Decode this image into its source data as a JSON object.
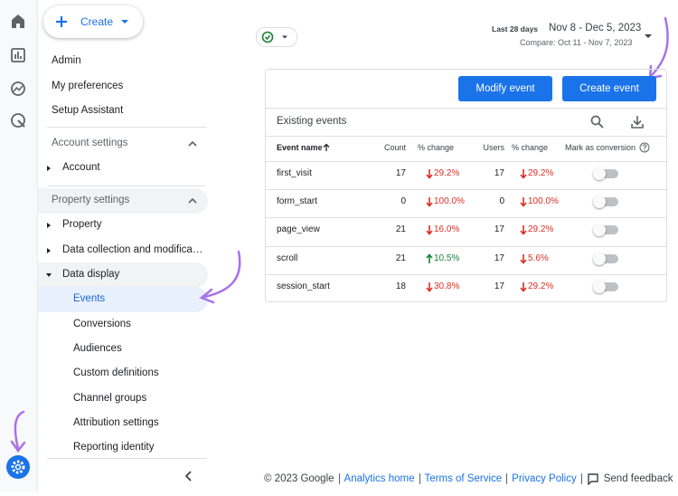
{
  "create_button": "Create",
  "nav": [
    "Admin",
    "My preferences",
    "Setup Assistant"
  ],
  "account_settings": {
    "title": "Account settings",
    "items": [
      "Account"
    ]
  },
  "property_settings": {
    "title": "Property settings",
    "items": [
      "Property",
      "Data collection and modifica…",
      "Data display"
    ],
    "subitems": [
      "Events",
      "Conversions",
      "Audiences",
      "Custom definitions",
      "Channel groups",
      "Attribution settings",
      "Reporting identity"
    ]
  },
  "date_range": {
    "label": "Last 28 days",
    "range": "Nov 8 - Dec 5, 2023",
    "compare": "Compare: Oct 11 - Nov 7, 2023"
  },
  "buttons": [
    "Modify event",
    "Create event"
  ],
  "table": {
    "title": "Existing events",
    "columns": [
      "Event name",
      "Count",
      "% change",
      "Users",
      "% change",
      "Mark as conversion"
    ],
    "rows": [
      [
        "first_visit",
        17,
        {
          "text": "29.2%",
          "trend": "down"
        },
        17,
        {
          "text": "29.2%",
          "trend": "down"
        }
      ],
      [
        "form_start",
        0,
        {
          "text": "100.0%",
          "trend": "down"
        },
        0,
        {
          "text": "100.0%",
          "trend": "down"
        }
      ],
      [
        "page_view",
        21,
        {
          "text": "16.0%",
          "trend": "down"
        },
        17,
        {
          "text": "29.2%",
          "trend": "down"
        }
      ],
      [
        "scroll",
        21,
        {
          "text": "10.5%",
          "trend": "up"
        },
        17,
        {
          "text": "5.6%",
          "trend": "down"
        }
      ],
      [
        "session_start",
        18,
        {
          "text": "30.8%",
          "trend": "down"
        },
        17,
        {
          "text": "29.2%",
          "trend": "down"
        }
      ]
    ]
  },
  "footer": {
    "copyright": "© 2023 Google",
    "links": [
      "Analytics home",
      "Terms of Service",
      "Privacy Policy"
    ],
    "feedback": "Send feedback"
  }
}
